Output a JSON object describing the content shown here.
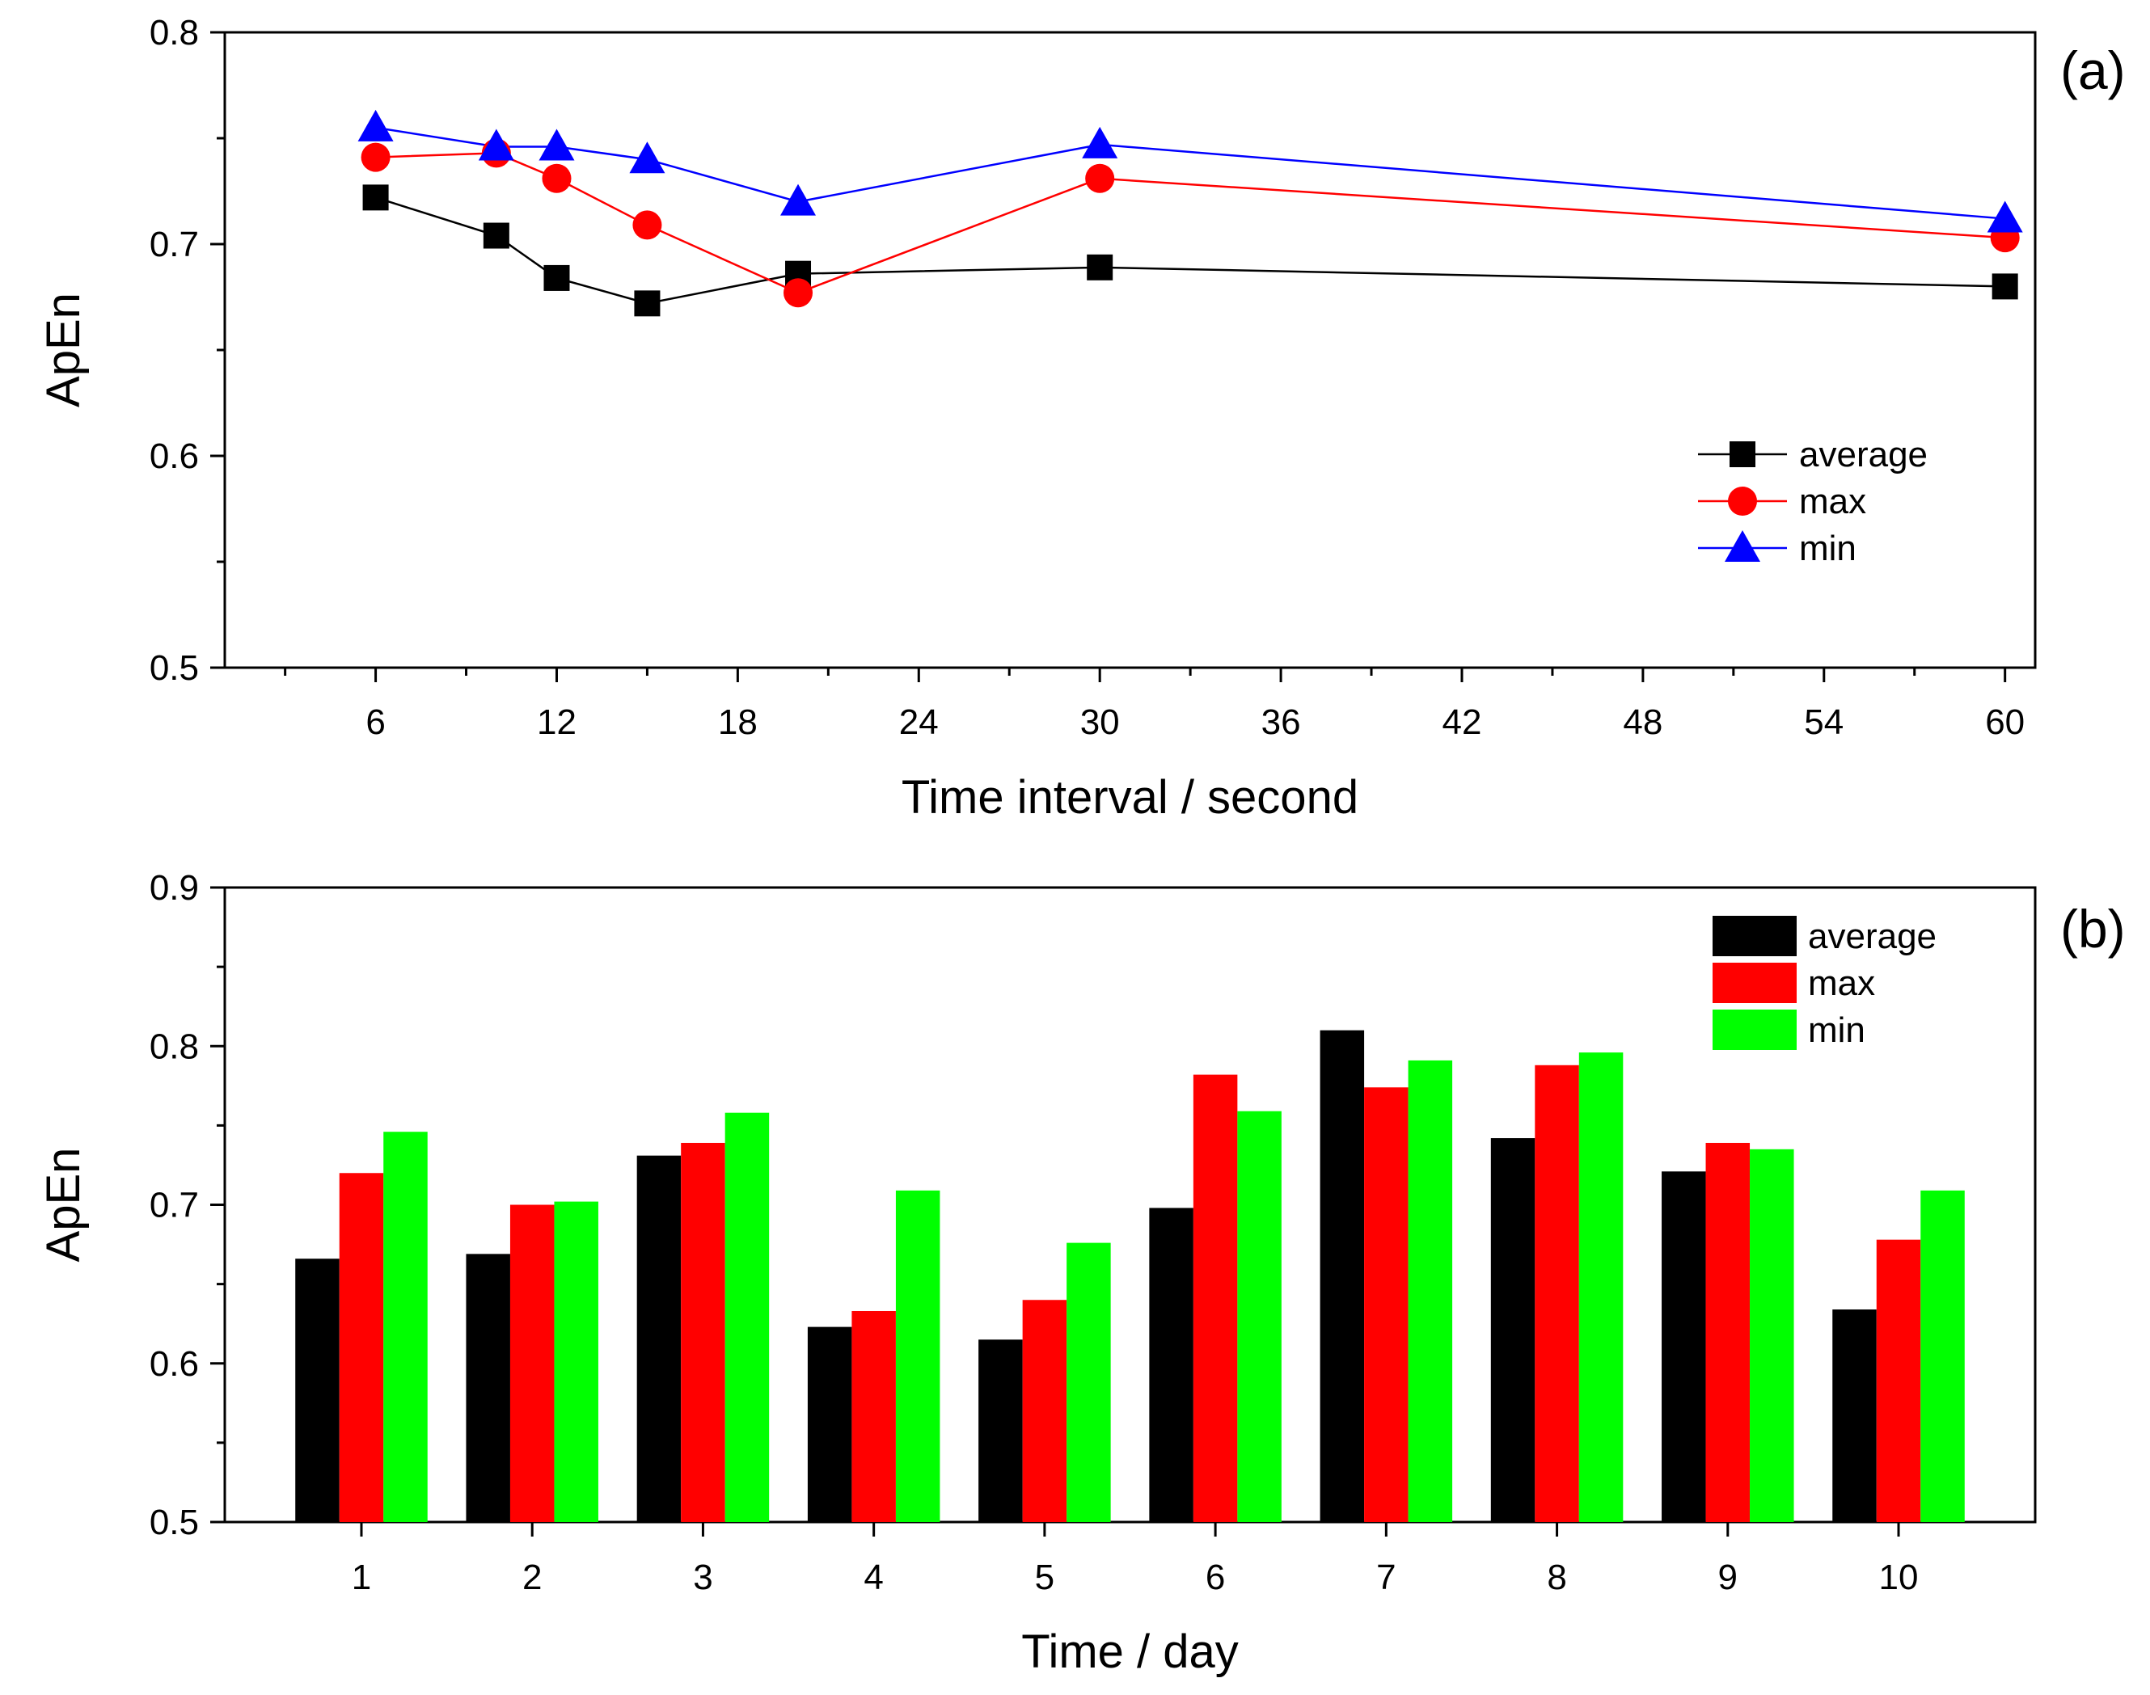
{
  "chart_data": [
    {
      "type": "line",
      "panel_label": "(a)",
      "xlabel": "Time interval / second",
      "ylabel": "ApEn",
      "xlim": [
        1,
        61
      ],
      "ylim": [
        0.5,
        0.8
      ],
      "xticks": [
        6,
        12,
        18,
        24,
        30,
        36,
        42,
        48,
        54,
        60
      ],
      "yticks": [
        0.5,
        0.6,
        0.7,
        0.8
      ],
      "legend_position": "lower-right",
      "x": [
        6,
        10,
        12,
        15,
        20,
        30,
        60
      ],
      "series": [
        {
          "name": "average",
          "color": "#000000",
          "marker": "square",
          "values": [
            0.722,
            0.704,
            0.684,
            0.672,
            0.686,
            0.689,
            0.68
          ]
        },
        {
          "name": "max",
          "color": "#ff0000",
          "marker": "circle",
          "values": [
            0.741,
            0.743,
            0.731,
            0.709,
            0.677,
            0.731,
            0.703
          ]
        },
        {
          "name": "min",
          "color": "#0000ff",
          "marker": "triangle",
          "values": [
            0.755,
            0.746,
            0.746,
            0.74,
            0.72,
            0.747,
            0.712
          ]
        }
      ]
    },
    {
      "type": "bar",
      "panel_label": "(b)",
      "xlabel": "Time / day",
      "ylabel": "ApEn",
      "ylim": [
        0.5,
        0.9
      ],
      "yticks": [
        0.5,
        0.6,
        0.7,
        0.8,
        0.9
      ],
      "legend_position": "top-right",
      "categories": [
        "1",
        "2",
        "3",
        "4",
        "5",
        "6",
        "7",
        "8",
        "9",
        "10"
      ],
      "series": [
        {
          "name": "average",
          "color": "#000000",
          "values": [
            0.666,
            0.669,
            0.731,
            0.623,
            0.615,
            0.698,
            0.81,
            0.742,
            0.721,
            0.634
          ]
        },
        {
          "name": "max",
          "color": "#ff0000",
          "values": [
            0.72,
            0.7,
            0.739,
            0.633,
            0.64,
            0.782,
            0.774,
            0.788,
            0.739,
            0.678
          ]
        },
        {
          "name": "min",
          "color": "#00ff00",
          "values": [
            0.746,
            0.702,
            0.758,
            0.709,
            0.676,
            0.759,
            0.791,
            0.796,
            0.735,
            0.709
          ]
        }
      ]
    }
  ]
}
